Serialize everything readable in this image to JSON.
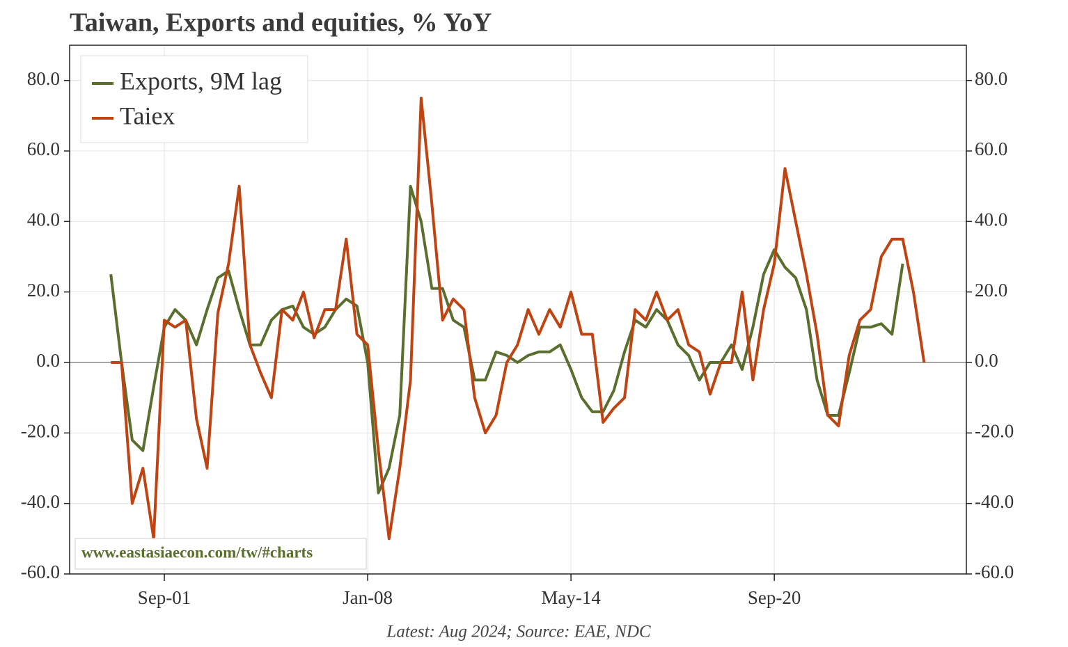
{
  "chart_data": {
    "type": "line",
    "title": "Taiwan, Exports and equities, % YoY",
    "source": "Latest: Aug 2024; Source: EAE, NDC",
    "watermark": "www.eastasiaecon.com/tw/#charts",
    "categories": [
      null,
      null,
      null,
      null,
      null,
      "Sep-01",
      null,
      null,
      null,
      null,
      null,
      null,
      null,
      null,
      null,
      null,
      null,
      null,
      null,
      null,
      null,
      null,
      null,
      null,
      "Jan-08",
      null,
      null,
      null,
      null,
      null,
      null,
      null,
      null,
      null,
      null,
      null,
      null,
      null,
      null,
      null,
      null,
      null,
      null,
      "May-14",
      null,
      null,
      null,
      null,
      null,
      null,
      null,
      null,
      null,
      null,
      null,
      null,
      null,
      null,
      null,
      null,
      null,
      null,
      "Sep-20",
      null,
      null,
      null,
      null,
      null,
      null,
      null,
      null,
      null,
      null,
      null,
      null,
      null,
      null
    ],
    "series": [
      {
        "name": "Exports, 9M lag",
        "color": "#5a6e2e",
        "values": [
          25,
          0,
          -22,
          -25,
          -7,
          10,
          15,
          12,
          5,
          15,
          24,
          26,
          15,
          5,
          5,
          12,
          15,
          16,
          10,
          8,
          10,
          15,
          18,
          16,
          0,
          -37,
          -30,
          -15,
          50,
          40,
          21,
          21,
          12,
          10,
          -5,
          -5,
          3,
          2,
          0,
          2,
          3,
          3,
          5,
          -2,
          -10,
          -14,
          -14,
          -8,
          3,
          12,
          10,
          15,
          12,
          5,
          2,
          -5,
          0,
          0,
          5,
          -2,
          10,
          25,
          32,
          27,
          24,
          15,
          -5,
          -15,
          -15,
          -3,
          10,
          10,
          11,
          8,
          28,
          null,
          null
        ]
      },
      {
        "name": "Taiex",
        "color": "#bf4412",
        "values": [
          0,
          0,
          -40,
          -30,
          -50,
          12,
          10,
          12,
          -16,
          -30,
          14,
          28,
          50,
          5,
          -3,
          -10,
          15,
          12,
          20,
          7,
          15,
          15,
          35,
          8,
          5,
          -25,
          -50,
          -30,
          -5,
          75,
          45,
          12,
          18,
          15,
          -10,
          -20,
          -15,
          0,
          5,
          15,
          8,
          15,
          10,
          20,
          8,
          8,
          -17,
          -13,
          -10,
          15,
          12,
          20,
          12,
          15,
          5,
          3,
          -9,
          0,
          0,
          20,
          -5,
          15,
          28,
          55,
          40,
          25,
          8,
          -15,
          -18,
          2,
          12,
          15,
          30,
          35,
          35,
          20,
          0
        ]
      }
    ],
    "ylim": [
      -60,
      90
    ],
    "yticks": [
      {
        "value": -60,
        "label": "-60.0"
      },
      {
        "value": -40,
        "label": "-40.0"
      },
      {
        "value": -20,
        "label": "-20.0"
      },
      {
        "value": 0,
        "label": "0.0"
      },
      {
        "value": 20,
        "label": "20.0"
      },
      {
        "value": 40,
        "label": "40.0"
      },
      {
        "value": 60,
        "label": "60.0"
      },
      {
        "value": 80,
        "label": "80.0"
      }
    ],
    "y2lim": [
      -60,
      90
    ],
    "y2ticks": [
      {
        "value": -60,
        "label": "-60.0"
      },
      {
        "value": -40,
        "label": "-40.0"
      },
      {
        "value": -20,
        "label": "-20.0"
      },
      {
        "value": 0,
        "label": "0.0"
      },
      {
        "value": 20,
        "label": "20.0"
      },
      {
        "value": 40,
        "label": "40.0"
      },
      {
        "value": 60,
        "label": "60.0"
      },
      {
        "value": 80,
        "label": "80.0"
      }
    ],
    "grid": true,
    "legend": "upper-left"
  }
}
